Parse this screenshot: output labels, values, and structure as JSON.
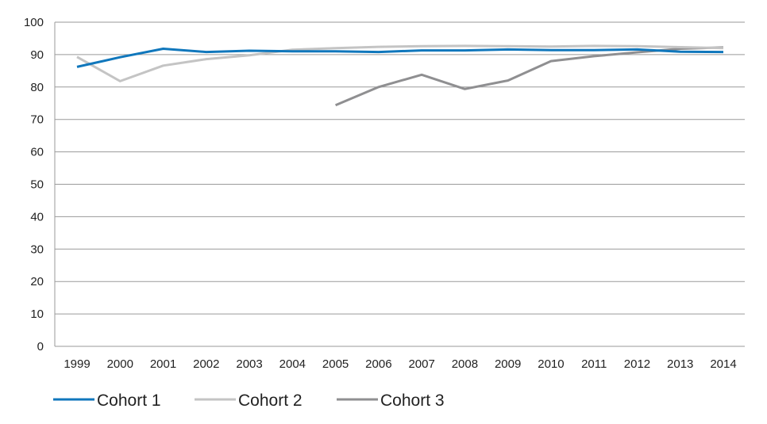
{
  "chart_data": {
    "type": "line",
    "title": "",
    "xlabel": "",
    "ylabel": "",
    "categories": [
      "1999",
      "2000",
      "2001",
      "2002",
      "2003",
      "2004",
      "2005",
      "2006",
      "2007",
      "2008",
      "2009",
      "2010",
      "2011",
      "2012",
      "2013",
      "2014"
    ],
    "ylim": [
      0,
      100
    ],
    "yticks": [
      0,
      10,
      20,
      30,
      40,
      50,
      60,
      70,
      80,
      90,
      100
    ],
    "grid": true,
    "legend_position": "bottom-left",
    "series": [
      {
        "name": "Cohort 1",
        "color": "#1077bc",
        "values": [
          86.2,
          89.2,
          91.8,
          90.8,
          91.2,
          91.0,
          91.0,
          90.8,
          91.3,
          91.3,
          91.6,
          91.4,
          91.4,
          91.6,
          90.9,
          90.8
        ]
      },
      {
        "name": "Cohort 2",
        "color": "#c4c4c4",
        "values": [
          89.3,
          81.8,
          86.6,
          88.6,
          89.8,
          91.5,
          92.0,
          92.4,
          92.6,
          92.7,
          92.6,
          92.5,
          92.7,
          92.6,
          92.3,
          92.0
        ]
      },
      {
        "name": "Cohort 3",
        "color": "#8f8f91",
        "values": [
          null,
          null,
          null,
          null,
          null,
          null,
          74.4,
          80.0,
          83.8,
          79.4,
          82.0,
          88.0,
          89.5,
          90.7,
          91.8,
          92.2
        ]
      }
    ]
  }
}
